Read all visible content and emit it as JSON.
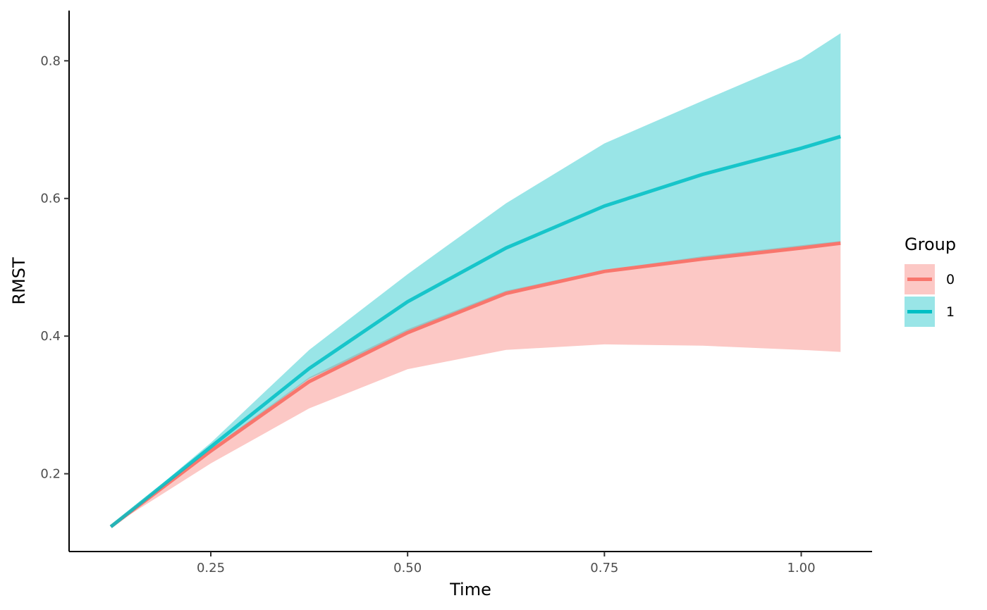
{
  "chart_data": {
    "type": "line",
    "title": "",
    "xlabel": "Time",
    "ylabel": "RMST",
    "xlim": [
      0.07,
      1.09
    ],
    "ylim": [
      0.087,
      0.873
    ],
    "x_ticks": [
      0.25,
      0.5,
      0.75,
      1.0
    ],
    "x_tick_labels": [
      "0.25",
      "0.50",
      "0.75",
      "1.00"
    ],
    "y_ticks": [
      0.2,
      0.4,
      0.6,
      0.8
    ],
    "y_tick_labels": [
      "0.2",
      "0.4",
      "0.6",
      "0.8"
    ],
    "grid": false,
    "legend": {
      "title": "Group",
      "position": "right"
    },
    "series": [
      {
        "name": "0",
        "color": "#F8766D",
        "x": [
          0.123,
          0.25,
          0.375,
          0.5,
          0.625,
          0.75,
          0.875,
          1.0,
          1.05
        ],
        "values": [
          0.123,
          0.233,
          0.334,
          0.405,
          0.462,
          0.494,
          0.512,
          0.528,
          0.535
        ],
        "lower": [
          0.123,
          0.215,
          0.295,
          0.352,
          0.38,
          0.388,
          0.386,
          0.38,
          0.377
        ],
        "upper": [
          0.123,
          0.236,
          0.34,
          0.41,
          0.466,
          0.496,
          0.516,
          0.532,
          0.538
        ]
      },
      {
        "name": "1",
        "color": "#00BFC4",
        "x": [
          0.123,
          0.25,
          0.375,
          0.5,
          0.625,
          0.75,
          0.875,
          1.0,
          1.05
        ],
        "values": [
          0.123,
          0.239,
          0.353,
          0.45,
          0.528,
          0.589,
          0.635,
          0.673,
          0.69
        ],
        "lower": [
          0.123,
          0.234,
          0.338,
          0.404,
          0.461,
          0.493,
          0.511,
          0.528,
          0.535
        ],
        "upper": [
          0.123,
          0.245,
          0.38,
          0.49,
          0.593,
          0.68,
          0.742,
          0.803,
          0.84
        ]
      }
    ]
  }
}
